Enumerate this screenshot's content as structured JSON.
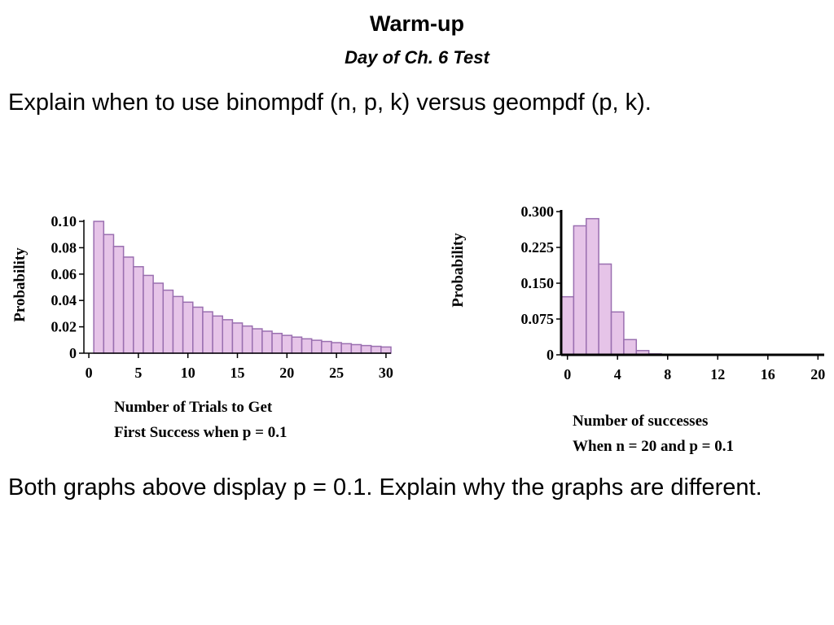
{
  "slide": {
    "title": "Warm-up",
    "subtitle": "Day of Ch. 6 Test",
    "question1": "Explain when to use binompdf (n, p, k) versus geompdf (p, k).",
    "question2": "Both graphs above display p = 0.1.  Explain why the graphs are different."
  },
  "colors": {
    "bar_fill": "#e6c4e8",
    "bar_stroke": "#9a6fb0",
    "axis": "#000000"
  },
  "chart_data": [
    {
      "type": "bar",
      "ylabel": "Probability",
      "xlabel_line1": "Number of Trials to Get",
      "xlabel_line2": "First Success when p = 0.1",
      "x": [
        1,
        2,
        3,
        4,
        5,
        6,
        7,
        8,
        9,
        10,
        11,
        12,
        13,
        14,
        15,
        16,
        17,
        18,
        19,
        20,
        21,
        22,
        23,
        24,
        25,
        26,
        27,
        28,
        29,
        30
      ],
      "values": [
        0.1,
        0.09,
        0.081,
        0.0729,
        0.0656,
        0.059,
        0.0531,
        0.0478,
        0.043,
        0.0387,
        0.0349,
        0.0314,
        0.0282,
        0.0254,
        0.0229,
        0.0206,
        0.0185,
        0.0167,
        0.015,
        0.0135,
        0.0122,
        0.0109,
        0.0098,
        0.0089,
        0.008,
        0.0072,
        0.0065,
        0.0058,
        0.0052,
        0.0047
      ],
      "xticks": [
        "0",
        "5",
        "10",
        "15",
        "20",
        "25",
        "30"
      ],
      "yticks": [
        "0",
        "0.02",
        "0.04",
        "0.06",
        "0.08",
        "0.10"
      ],
      "xlim": [
        -0.5,
        30.5
      ],
      "ylim": [
        0,
        0.1
      ]
    },
    {
      "type": "bar",
      "ylabel": "Probability",
      "xlabel_line1": "Number of successes",
      "xlabel_line2": "When n = 20 and p = 0.1",
      "x": [
        0,
        1,
        2,
        3,
        4,
        5,
        6,
        7,
        8,
        9,
        10,
        11,
        12,
        13,
        14,
        15,
        16,
        17,
        18,
        19,
        20
      ],
      "values": [
        0.1216,
        0.2702,
        0.2852,
        0.1901,
        0.0898,
        0.0319,
        0.0089,
        0.002,
        0.0004,
        0.0001,
        0,
        0,
        0,
        0,
        0,
        0,
        0,
        0,
        0,
        0,
        0
      ],
      "xticks": [
        "0",
        "4",
        "8",
        "12",
        "16",
        "20"
      ],
      "yticks": [
        "0",
        "0.075",
        "0.150",
        "0.225",
        "0.300"
      ],
      "xlim": [
        -0.5,
        20.5
      ],
      "ylim": [
        0,
        0.3
      ]
    }
  ]
}
